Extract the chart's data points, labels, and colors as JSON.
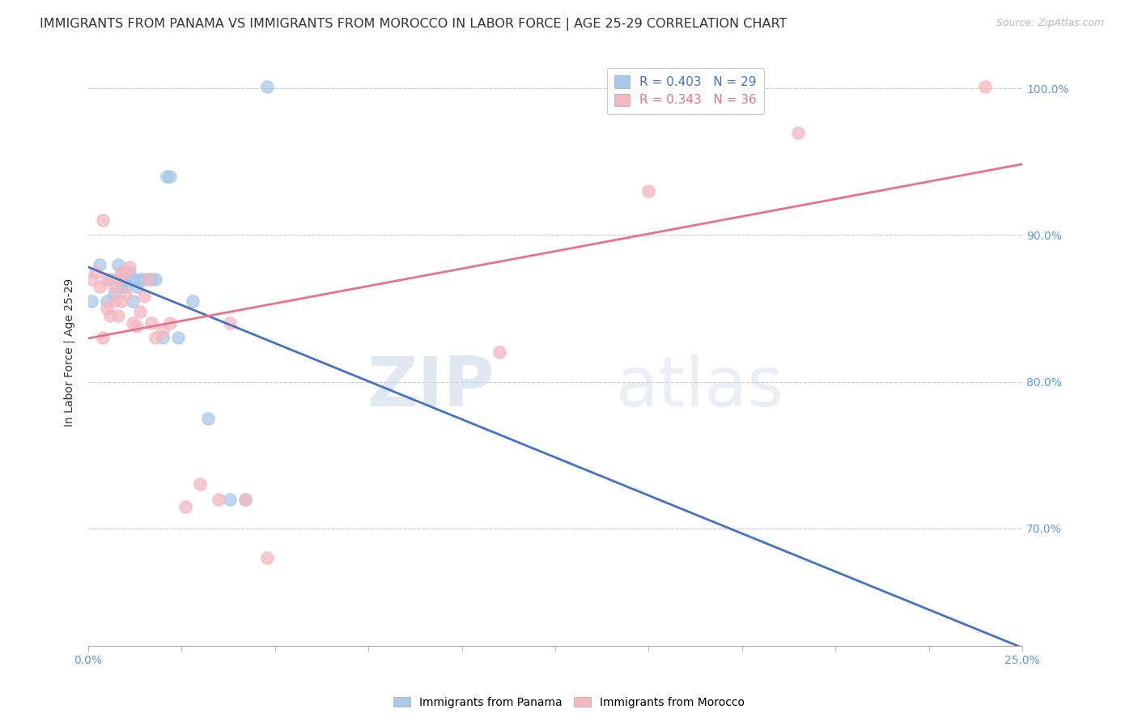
{
  "title": "IMMIGRANTS FROM PANAMA VS IMMIGRANTS FROM MOROCCO IN LABOR FORCE | AGE 25-29 CORRELATION CHART",
  "source": "Source: ZipAtlas.com",
  "ylabel": "In Labor Force | Age 25-29",
  "xlim": [
    0.0,
    0.25
  ],
  "ylim": [
    0.62,
    1.02
  ],
  "xticks": [
    0.0,
    0.025,
    0.05,
    0.075,
    0.1,
    0.125,
    0.15,
    0.175,
    0.2,
    0.225,
    0.25
  ],
  "xticklabels_show": [
    "0.0%",
    "25.0%"
  ],
  "yticks": [
    0.7,
    0.8,
    0.9,
    1.0
  ],
  "yticklabels": [
    "70.0%",
    "80.0%",
    "90.0%",
    "100.0%"
  ],
  "panama_color": "#a8c8e8",
  "morocco_color": "#f4b8c1",
  "panama_line_color": "#4472c4",
  "morocco_line_color": "#e8728a",
  "legend_panama_R": "R = 0.403",
  "legend_panama_N": "N = 29",
  "legend_morocco_R": "R = 0.343",
  "legend_morocco_N": "N = 36",
  "watermark_zip": "ZIP",
  "watermark_atlas": "atlas",
  "axis_color": "#5b9bd5",
  "grid_color": "#cccccc",
  "panama_x": [
    0.001,
    0.003,
    0.005,
    0.006,
    0.007,
    0.008,
    0.008,
    0.009,
    0.009,
    0.01,
    0.01,
    0.011,
    0.012,
    0.012,
    0.013,
    0.014,
    0.015,
    0.016,
    0.017,
    0.018,
    0.02,
    0.021,
    0.022,
    0.024,
    0.028,
    0.032,
    0.038,
    0.042,
    0.048
  ],
  "panama_y": [
    0.855,
    0.88,
    0.855,
    0.87,
    0.86,
    0.87,
    0.88,
    0.865,
    0.875,
    0.87,
    0.865,
    0.875,
    0.855,
    0.87,
    0.865,
    0.87,
    0.87,
    0.87,
    0.87,
    0.87,
    0.83,
    0.94,
    0.94,
    0.83,
    0.855,
    0.775,
    0.72,
    0.72,
    1.001
  ],
  "morocco_x": [
    0.001,
    0.002,
    0.003,
    0.004,
    0.004,
    0.005,
    0.005,
    0.006,
    0.007,
    0.007,
    0.008,
    0.008,
    0.009,
    0.009,
    0.01,
    0.01,
    0.011,
    0.012,
    0.013,
    0.014,
    0.015,
    0.016,
    0.017,
    0.018,
    0.02,
    0.022,
    0.026,
    0.03,
    0.035,
    0.038,
    0.042,
    0.048,
    0.11,
    0.15,
    0.19,
    0.24
  ],
  "morocco_y": [
    0.87,
    0.875,
    0.865,
    0.83,
    0.91,
    0.85,
    0.87,
    0.845,
    0.855,
    0.865,
    0.845,
    0.87,
    0.855,
    0.875,
    0.86,
    0.875,
    0.878,
    0.84,
    0.838,
    0.848,
    0.858,
    0.87,
    0.84,
    0.83,
    0.835,
    0.84,
    0.715,
    0.73,
    0.72,
    0.84,
    0.72,
    0.68,
    0.82,
    0.93,
    0.97,
    1.001
  ],
  "background_color": "#ffffff",
  "title_fontsize": 11.5,
  "tick_fontsize": 10,
  "legend_fontsize": 11
}
